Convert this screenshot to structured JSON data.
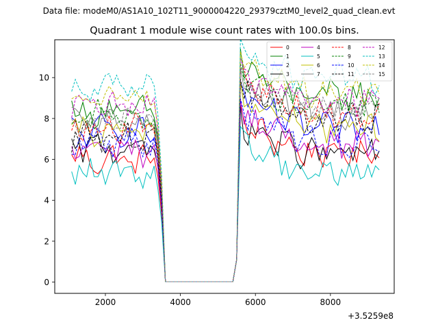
{
  "suptitle": "Data file: modeM0/AS1A10_102T11_9000004220_29379cztM0_level2_quad_clean.evt",
  "chart_data": {
    "type": "line",
    "title": "Quadrant 1 module wise count rates with 100.0s bins.",
    "xlabel": "",
    "ylabel": "",
    "x_offset_label": "+3.5259e8",
    "xlim": [
      650,
      9700
    ],
    "ylim": [
      -0.55,
      11.85
    ],
    "x_ticks": [
      2000,
      4000,
      6000,
      8000
    ],
    "y_ticks": [
      0,
      2,
      4,
      6,
      8,
      10
    ],
    "x_tick_labels": [
      "2000",
      "4000",
      "6000",
      "8000"
    ],
    "y_tick_labels": [
      "0",
      "2",
      "4",
      "6",
      "8",
      "10"
    ],
    "grid": false,
    "legend_position": "top-right",
    "time_start": 1100,
    "bin_size": 100,
    "n_bins": 83,
    "gap_start_bin": 25,
    "gap_end_bin": 45,
    "series": [
      {
        "name": "0",
        "color": "#ff0000",
        "dash": "solid",
        "mean": 6.0,
        "after_mean": 6.3
      },
      {
        "name": "1",
        "color": "#008000",
        "dash": "solid",
        "mean": 8.3,
        "after_mean": 9.1
      },
      {
        "name": "2",
        "color": "#0000ff",
        "dash": "solid",
        "mean": 7.4,
        "after_mean": 7.5
      },
      {
        "name": "3",
        "color": "#000000",
        "dash": "solid",
        "mean": 6.6,
        "after_mean": 6.3
      },
      {
        "name": "4",
        "color": "#bf00bf",
        "dash": "solid",
        "mean": 6.5,
        "after_mean": 6.7
      },
      {
        "name": "5",
        "color": "#00bfbf",
        "dash": "solid",
        "mean": 5.3,
        "after_mean": 5.4
      },
      {
        "name": "6",
        "color": "#bfbf00",
        "dash": "solid",
        "mean": 7.3,
        "after_mean": 7.6
      },
      {
        "name": "7",
        "color": "#808080",
        "dash": "solid",
        "mean": 7.8,
        "after_mean": 8.3
      },
      {
        "name": "8",
        "color": "#ff0000",
        "dash": "dashed",
        "mean": 7.6,
        "after_mean": 8.3
      },
      {
        "name": "9",
        "color": "#008000",
        "dash": "dashed",
        "mean": 8.1,
        "after_mean": 8.6
      },
      {
        "name": "10",
        "color": "#0000ff",
        "dash": "dashed",
        "mean": 6.9,
        "after_mean": 6.9
      },
      {
        "name": "11",
        "color": "#000000",
        "dash": "dashed",
        "mean": 7.1,
        "after_mean": 7.9
      },
      {
        "name": "12",
        "color": "#bf00bf",
        "dash": "dashed",
        "mean": 8.6,
        "after_mean": 8.9
      },
      {
        "name": "13",
        "color": "#00bfbf",
        "dash": "dashed",
        "mean": 9.5,
        "after_mean": 9.9
      },
      {
        "name": "14",
        "color": "#bfbf00",
        "dash": "dashed",
        "mean": 8.9,
        "after_mean": 9.3
      },
      {
        "name": "15",
        "color": "#808080",
        "dash": "dashed",
        "mean": 8.0,
        "after_mean": 8.5
      }
    ]
  }
}
